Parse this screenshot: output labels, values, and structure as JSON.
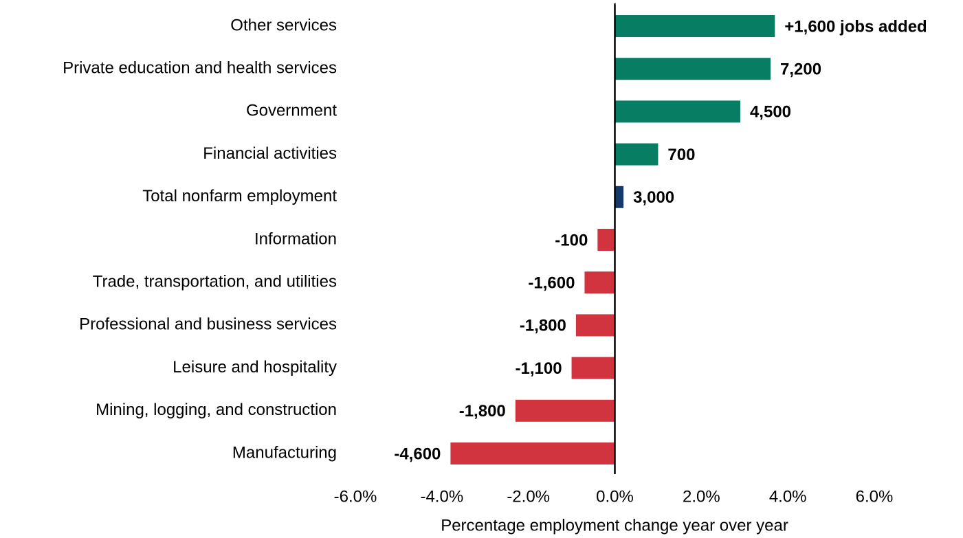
{
  "chart_data": {
    "type": "barh",
    "x_label": "Percentage employment  change year over year",
    "categories": [
      "Other services",
      "Private education and health services",
      "Government",
      "Financial activities",
      "Total nonfarm employment",
      "Information",
      "Trade, transportation, and utilities",
      "Professional and business services",
      "Leisure and hospitality",
      "Mining, logging, and construction",
      "Manufacturing"
    ],
    "values": [
      3.7,
      3.6,
      2.9,
      1.0,
      0.2,
      -0.4,
      -0.7,
      -0.9,
      -1.0,
      -2.3,
      -3.8
    ],
    "colors": [
      "#077d63",
      "#077d63",
      "#077d63",
      "#077d63",
      "#15396a",
      "#d2343f",
      "#d2343f",
      "#d2343f",
      "#d2343f",
      "#d2343f",
      "#d2343f"
    ],
    "job_change_labels": [
      "+1,600 jobs added",
      "7,200",
      "4,500",
      "700",
      "3,000",
      "-100",
      "-1,600",
      "-1,800",
      "-1,100",
      "-1,800",
      "-4,600"
    ],
    "xlim": [
      -6,
      6
    ],
    "xticks": [
      {
        "value": -6,
        "label": "-6.0%"
      },
      {
        "value": -4,
        "label": "-4.0%"
      },
      {
        "value": -2,
        "label": "-2.0%"
      },
      {
        "value": 0,
        "label": "0.0%"
      },
      {
        "value": 2,
        "label": "2.0%"
      },
      {
        "value": 4,
        "label": "4.0%"
      },
      {
        "value": 6,
        "label": "6.0%"
      }
    ],
    "grid": false
  }
}
